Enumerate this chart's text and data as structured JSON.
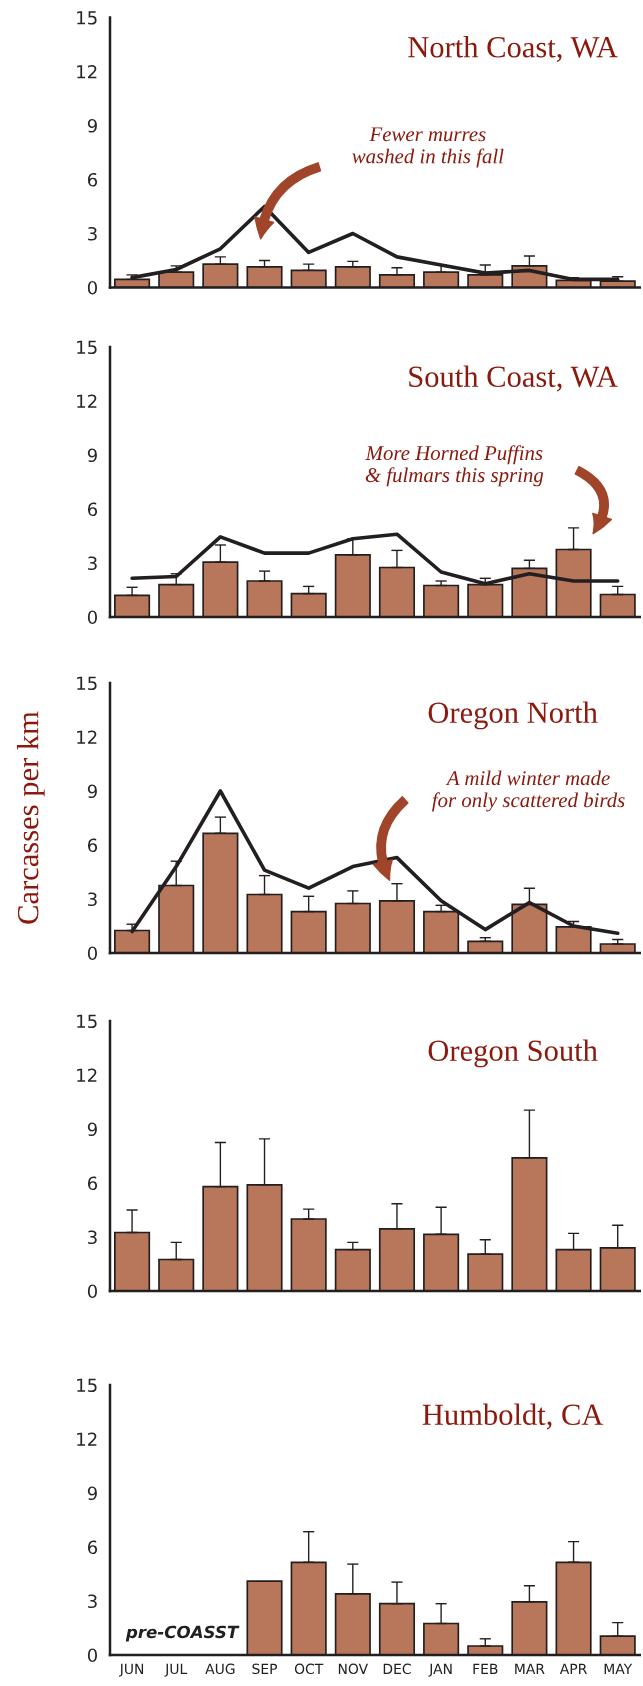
{
  "chart_data": [
    {
      "type": "bar",
      "title": "North Coast, WA",
      "categories": [
        null,
        null,
        null,
        null,
        null,
        null,
        null,
        null,
        null,
        null,
        null,
        null
      ],
      "ylim": [
        0,
        15
      ],
      "yticks": [
        0,
        3,
        6,
        9,
        12,
        15
      ],
      "tick_labels": "y",
      "grid": false,
      "series": [
        {
          "color": "#b8765a",
          "values": [
            0.45,
            0.85,
            1.3,
            1.15,
            0.95,
            1.15,
            0.7,
            0.85,
            0.7,
            1.2,
            0.4,
            0.35
          ],
          "errors": [
            [
              0.45,
              0.7
            ],
            [
              0.85,
              1.2
            ],
            [
              1.3,
              1.7
            ],
            [
              1.15,
              1.5
            ],
            [
              0.95,
              1.3
            ],
            [
              1.15,
              1.45
            ],
            [
              0.7,
              1.1
            ],
            [
              0.85,
              1.25
            ],
            [
              0.7,
              1.25
            ],
            [
              1.2,
              1.75
            ],
            [
              0.4,
              0.55
            ],
            [
              0.35,
              0.6
            ]
          ]
        },
        {
          "type": "line",
          "color": "#231f20",
          "values": [
            0.55,
            1.0,
            2.15,
            4.5,
            1.95,
            3.0,
            1.7,
            1.25,
            0.8,
            0.95,
            0.45,
            0.45
          ]
        }
      ],
      "annotations": [
        "Fewer murres\nwashed in this fall"
      ]
    },
    {
      "type": "bar",
      "title": "South Coast, WA",
      "categories": [
        null,
        null,
        null,
        null,
        null,
        null,
        null,
        null,
        null,
        null,
        null,
        null
      ],
      "ylim": [
        0,
        15
      ],
      "yticks": [
        0,
        3,
        6,
        9,
        12,
        15
      ],
      "tick_labels": "y",
      "grid": false,
      "series": [
        {
          "color": "#b8765a",
          "values": [
            1.2,
            1.8,
            3.05,
            2.0,
            1.3,
            3.45,
            2.75,
            1.75,
            1.8,
            2.7,
            3.75,
            1.25
          ],
          "errors": [
            [
              1.2,
              1.65
            ],
            [
              1.8,
              2.4
            ],
            [
              3.05,
              4.0
            ],
            [
              2.0,
              2.55
            ],
            [
              1.3,
              1.7
            ],
            [
              3.45,
              4.35
            ],
            [
              2.75,
              3.7
            ],
            [
              1.75,
              2.0
            ],
            [
              1.8,
              2.15
            ],
            [
              2.7,
              3.15
            ],
            [
              3.75,
              4.95
            ],
            [
              1.25,
              1.7
            ]
          ]
        },
        {
          "type": "line",
          "color": "#231f20",
          "values": [
            2.15,
            2.25,
            4.45,
            3.55,
            3.55,
            4.35,
            4.6,
            2.5,
            1.85,
            2.4,
            2.0,
            2.0
          ]
        }
      ],
      "annotations": [
        "More Horned Puffins\n& fulmars this spring"
      ]
    },
    {
      "type": "bar",
      "title": "Oregon North",
      "ylabel": "Carcasses per km",
      "categories": [
        null,
        null,
        null,
        null,
        null,
        null,
        null,
        null,
        null,
        null,
        null,
        null
      ],
      "ylim": [
        0,
        15
      ],
      "yticks": [
        0,
        3,
        6,
        9,
        12,
        15
      ],
      "tick_labels": "y",
      "grid": false,
      "series": [
        {
          "color": "#b8765a",
          "values": [
            1.25,
            3.75,
            6.65,
            3.25,
            2.3,
            2.75,
            2.9,
            2.3,
            0.65,
            2.7,
            1.45,
            0.5
          ],
          "errors": [
            [
              1.25,
              1.6
            ],
            [
              3.75,
              5.1
            ],
            [
              6.65,
              7.55
            ],
            [
              3.25,
              4.3
            ],
            [
              2.3,
              3.15
            ],
            [
              2.75,
              3.45
            ],
            [
              2.9,
              3.85
            ],
            [
              2.3,
              2.65
            ],
            [
              0.65,
              0.85
            ],
            [
              2.7,
              3.6
            ],
            [
              1.45,
              1.75
            ],
            [
              0.5,
              0.75
            ]
          ]
        },
        {
          "type": "line",
          "color": "#231f20",
          "values": [
            1.2,
            4.8,
            9.0,
            4.6,
            3.6,
            4.8,
            5.3,
            2.9,
            1.3,
            2.8,
            1.5,
            1.1
          ]
        }
      ],
      "annotations": [
        "A mild winter made\nfor only scattered birds"
      ]
    },
    {
      "type": "bar",
      "title": "Oregon South",
      "categories": [
        null,
        null,
        null,
        null,
        null,
        null,
        null,
        null,
        null,
        null,
        null,
        null
      ],
      "ylim": [
        0,
        15
      ],
      "yticks": [
        0,
        3,
        6,
        9,
        12,
        15
      ],
      "tick_labels": "y",
      "grid": false,
      "series": [
        {
          "color": "#b8765a",
          "values": [
            3.25,
            1.75,
            5.8,
            5.9,
            4.0,
            2.3,
            3.45,
            3.15,
            2.05,
            7.4,
            2.3,
            2.4
          ],
          "errors": [
            [
              3.25,
              4.5
            ],
            [
              1.75,
              2.7
            ],
            [
              5.8,
              8.25
            ],
            [
              5.9,
              8.45
            ],
            [
              4.0,
              4.55
            ],
            [
              2.3,
              2.7
            ],
            [
              3.45,
              4.85
            ],
            [
              3.15,
              4.65
            ],
            [
              2.05,
              2.85
            ],
            [
              7.4,
              10.05
            ],
            [
              2.3,
              3.2
            ],
            [
              2.4,
              3.65
            ]
          ]
        }
      ]
    },
    {
      "type": "bar",
      "title": "Humboldt, CA",
      "categories": [
        "JUN",
        "JUL",
        "AUG",
        "SEP",
        "OCT",
        "NOV",
        "DEC",
        "JAN",
        "FEB",
        "MAR",
        "APR",
        "MAY"
      ],
      "ylim": [
        0,
        15
      ],
      "yticks": [
        0,
        3,
        6,
        9,
        12,
        15
      ],
      "grid": false,
      "series": [
        {
          "color": "#b8765a",
          "values": [
            null,
            null,
            null,
            4.1,
            5.15,
            3.4,
            2.85,
            1.75,
            0.5,
            2.95,
            5.15,
            1.05
          ],
          "errors": [
            null,
            null,
            null,
            null,
            [
              5.15,
              6.85
            ],
            [
              3.4,
              5.05
            ],
            [
              2.85,
              4.05
            ],
            [
              1.75,
              2.85
            ],
            [
              0.5,
              0.9
            ],
            [
              2.95,
              3.85
            ],
            [
              5.15,
              6.3
            ],
            [
              1.05,
              1.8
            ]
          ]
        }
      ],
      "annotations": [
        "pre-COASST"
      ]
    }
  ]
}
